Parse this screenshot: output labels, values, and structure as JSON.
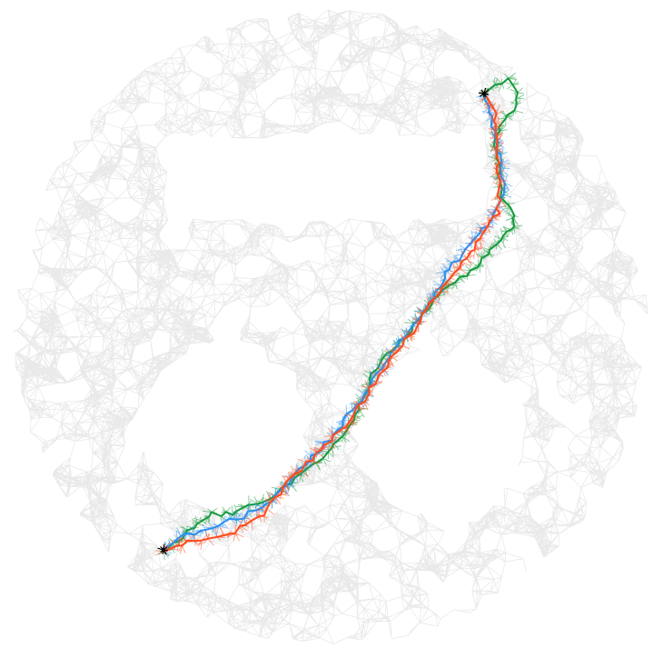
{
  "diagram": {
    "type": "network-with-paths",
    "background_graph": {
      "node_color": "#e6e6e6",
      "edge_color": "#e9e9e9",
      "shape": "disk-with-three-holes",
      "holes": [
        "rectangle-top",
        "circle-bottom-left",
        "circle-bottom-right"
      ]
    },
    "endpoints": {
      "color": "#000000",
      "start_marker": "star",
      "end_marker": "star"
    },
    "paths": [
      {
        "color": "#ff4a1c"
      },
      {
        "color": "#2a8ff0"
      },
      {
        "color": "#169a3d"
      }
    ]
  }
}
